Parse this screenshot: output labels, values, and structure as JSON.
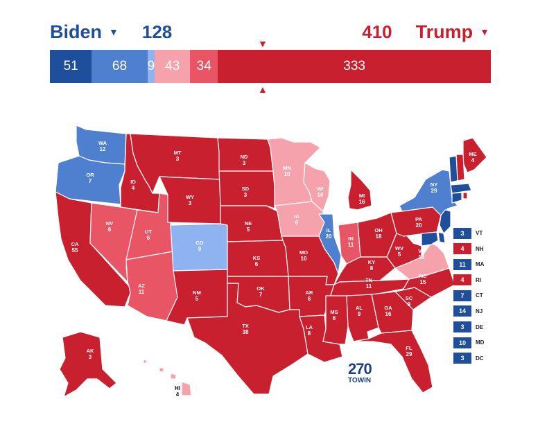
{
  "colors": {
    "safe_dem": "#1f4e9b",
    "likely_dem": "#4f7fcf",
    "lean_dem": "#8fb3f0",
    "lean_rep": "#f5a2ac",
    "likely_rep": "#e85564",
    "safe_rep": "#c8202f"
  },
  "header": {
    "dem_name": "Biden",
    "dem_total": "128",
    "rep_total": "410",
    "rep_name": "Trump",
    "dropdown_icon": "caret-down-icon",
    "marker_icon": "triangle-marker-icon"
  },
  "bar": [
    {
      "label": "51",
      "value": 51,
      "category": "safe_dem"
    },
    {
      "label": "68",
      "value": 68,
      "category": "likely_dem"
    },
    {
      "label": "9",
      "value": 9,
      "category": "lean_dem"
    },
    {
      "label": "43",
      "value": 43,
      "category": "lean_rep"
    },
    {
      "label": "34",
      "value": 34,
      "category": "likely_rep"
    },
    {
      "label": "333",
      "value": 333,
      "category": "safe_rep"
    }
  ],
  "states": [
    {
      "abbr": "WA",
      "ev": "12",
      "category": "likely_dem"
    },
    {
      "abbr": "OR",
      "ev": "7",
      "category": "likely_dem"
    },
    {
      "abbr": "CA",
      "ev": "55",
      "category": "safe_rep"
    },
    {
      "abbr": "ID",
      "ev": "4",
      "category": "safe_rep"
    },
    {
      "abbr": "NV",
      "ev": "6",
      "category": "likely_rep"
    },
    {
      "abbr": "UT",
      "ev": "6",
      "category": "likely_rep"
    },
    {
      "abbr": "AZ",
      "ev": "11",
      "category": "likely_rep"
    },
    {
      "abbr": "MT",
      "ev": "3",
      "category": "safe_rep"
    },
    {
      "abbr": "WY",
      "ev": "3",
      "category": "safe_rep"
    },
    {
      "abbr": "CO",
      "ev": "9",
      "category": "lean_dem"
    },
    {
      "abbr": "NM",
      "ev": "5",
      "category": "safe_rep"
    },
    {
      "abbr": "ND",
      "ev": "3",
      "category": "safe_rep"
    },
    {
      "abbr": "SD",
      "ev": "3",
      "category": "safe_rep"
    },
    {
      "abbr": "NE",
      "ev": "5",
      "category": "safe_rep"
    },
    {
      "abbr": "KS",
      "ev": "6",
      "category": "safe_rep"
    },
    {
      "abbr": "OK",
      "ev": "7",
      "category": "safe_rep"
    },
    {
      "abbr": "TX",
      "ev": "38",
      "category": "safe_rep"
    },
    {
      "abbr": "MN",
      "ev": "10",
      "category": "lean_rep"
    },
    {
      "abbr": "IA",
      "ev": "6",
      "category": "lean_rep"
    },
    {
      "abbr": "MO",
      "ev": "10",
      "category": "safe_rep"
    },
    {
      "abbr": "AR",
      "ev": "6",
      "category": "safe_rep"
    },
    {
      "abbr": "LA",
      "ev": "8",
      "category": "safe_rep"
    },
    {
      "abbr": "WI",
      "ev": "10",
      "category": "lean_rep"
    },
    {
      "abbr": "IL",
      "ev": "20",
      "category": "likely_dem"
    },
    {
      "abbr": "MI",
      "ev": "16",
      "category": "safe_rep"
    },
    {
      "abbr": "IN",
      "ev": "11",
      "category": "likely_rep"
    },
    {
      "abbr": "OH",
      "ev": "18",
      "category": "safe_rep"
    },
    {
      "abbr": "KY",
      "ev": "8",
      "category": "safe_rep"
    },
    {
      "abbr": "TN",
      "ev": "11",
      "category": "safe_rep"
    },
    {
      "abbr": "MS",
      "ev": "6",
      "category": "safe_rep"
    },
    {
      "abbr": "AL",
      "ev": "9",
      "category": "safe_rep"
    },
    {
      "abbr": "GA",
      "ev": "16",
      "category": "safe_rep"
    },
    {
      "abbr": "FL",
      "ev": "29",
      "category": "safe_rep"
    },
    {
      "abbr": "SC",
      "ev": "9",
      "category": "safe_rep"
    },
    {
      "abbr": "NC",
      "ev": "15",
      "category": "safe_rep"
    },
    {
      "abbr": "VA",
      "ev": "13",
      "category": "lean_rep"
    },
    {
      "abbr": "WV",
      "ev": "5",
      "category": "safe_rep"
    },
    {
      "abbr": "PA",
      "ev": "20",
      "category": "safe_rep"
    },
    {
      "abbr": "NY",
      "ev": "29",
      "category": "likely_dem"
    },
    {
      "abbr": "ME",
      "ev": "4",
      "category": "safe_rep"
    },
    {
      "abbr": "AK",
      "ev": "3",
      "category": "safe_rep"
    },
    {
      "abbr": "HI",
      "ev": "4",
      "category": "lean_rep"
    }
  ],
  "small_states": [
    {
      "abbr": "VT",
      "ev": "3",
      "category": "safe_dem"
    },
    {
      "abbr": "NH",
      "ev": "4",
      "category": "safe_rep"
    },
    {
      "abbr": "MA",
      "ev": "11",
      "category": "safe_dem"
    },
    {
      "abbr": "RI",
      "ev": "4",
      "category": "safe_rep"
    },
    {
      "abbr": "CT",
      "ev": "7",
      "category": "safe_dem"
    },
    {
      "abbr": "NJ",
      "ev": "14",
      "category": "safe_dem"
    },
    {
      "abbr": "DE",
      "ev": "3",
      "category": "safe_dem"
    },
    {
      "abbr": "MD",
      "ev": "10",
      "category": "safe_dem"
    },
    {
      "abbr": "DC",
      "ev": "3",
      "category": "safe_dem"
    }
  ],
  "brand": {
    "number": "270",
    "sub": "TOWIN"
  }
}
